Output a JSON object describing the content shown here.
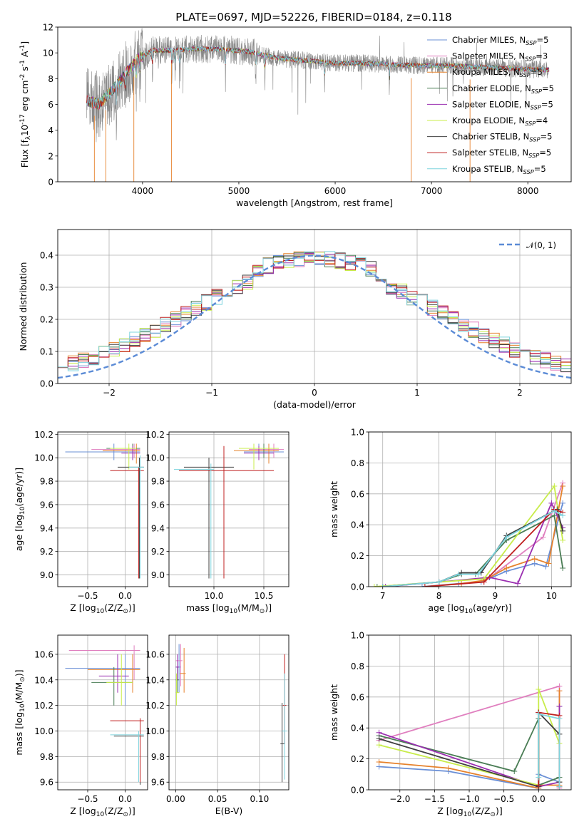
{
  "series_colors": {
    "Chabrier MILES": "#6a8fd6",
    "Salpeter MILES": "#e07fbf",
    "Kroupa MILES": "#e6822c",
    "Chabrier ELODIE": "#4a7d55",
    "Salpeter ELODIE": "#9a2eb0",
    "Kroupa ELODIE": "#c8ec4a",
    "Chabrier STELIB": "#404040",
    "Salpeter STELIB": "#c02020",
    "Kroupa STELIB": "#7ed4de"
  },
  "chart_data": [
    {
      "id": "spectrum",
      "type": "line",
      "title": "PLATE=0697, MJD=52226, FIBERID=0184, z=0.118",
      "xlabel": "wavelength [Angstrom, rest frame]",
      "ylabel": "Flux [f$_\\lambda$10$^{-17}$ erg cm$^{-2}$ s$^{-1}$ A$^{-1}$]",
      "xlim": [
        3120,
        8450
      ],
      "ylim": [
        0,
        12
      ],
      "xticks": [
        "4000",
        "5000",
        "6000",
        "7000",
        "8000"
      ],
      "yticks": [
        "0",
        "2",
        "4",
        "6",
        "8",
        "10",
        "12"
      ],
      "grid": false,
      "legend_position": "top-right",
      "data_color": "#888888",
      "legend": [
        "Chabrier MILES, N$_{SSP}$=5",
        "Salpeter MILES, N$_{SSP}$=3",
        "Kroupa MILES, N$_{SSP}$=5",
        "Chabrier ELODIE, N$_{SSP}$=5",
        "Salpeter ELODIE, N$_{SSP}$=5",
        "Kroupa ELODIE, N$_{SSP}$=4",
        "Chabrier STELIB, N$_{SSP}$=5",
        "Salpeter STELIB, N$_{SSP}$=5",
        "Kroupa STELIB, N$_{SSP}$=5"
      ],
      "continuum": {
        "x": [
          3420,
          3550,
          3700,
          3850,
          3950,
          4100,
          4300,
          4500,
          4800,
          5100,
          5400,
          5700,
          6000,
          6300,
          6600,
          6900,
          7200,
          7500,
          7800,
          8100,
          8200
        ],
        "y": [
          6.3,
          6.0,
          7.2,
          8.6,
          9.5,
          10.2,
          10.2,
          10.3,
          10.3,
          10.1,
          9.6,
          9.4,
          9.2,
          9.2,
          9.1,
          9.0,
          9.0,
          8.9,
          8.8,
          8.7,
          8.7
        ]
      }
    },
    {
      "id": "residuals",
      "type": "bar",
      "xlabel": "(data-model)/error",
      "ylabel": "Normed distribution",
      "xlim": [
        -2.5,
        2.5
      ],
      "ylim": [
        0,
        0.48
      ],
      "xticks": [
        "-2",
        "-1",
        "0",
        "1",
        "2"
      ],
      "yticks": [
        "0.0",
        "0.1",
        "0.2",
        "0.3",
        "0.4"
      ],
      "grid": true,
      "legend_position": "top-right",
      "legend": [
        "$\\mathcal{N}(0, 1)$"
      ],
      "bins": {
        "start": -2.5,
        "width": 0.1,
        "count": 50
      }
    },
    {
      "id": "age-vs-Z",
      "type": "scatter",
      "xlabel": "Z [log$_{10}$(Z/Z$_\\odot$)]",
      "ylabel": "age  [log$_{10}$(age/yr)]",
      "xlim": [
        -0.9,
        0.3
      ],
      "ylim": [
        8.9,
        10.22
      ],
      "xticks": [
        "-0.5",
        "0.0"
      ],
      "yticks": [
        "9.0",
        "9.2",
        "9.4",
        "9.6",
        "9.8",
        "10.0",
        "10.2"
      ],
      "grid": true
    },
    {
      "id": "age-vs-mass",
      "type": "scatter",
      "xlabel": "mass [log$_{10}$(M/M$_\\odot$)]",
      "xlim": [
        9.55,
        10.75
      ],
      "ylim": [
        8.9,
        10.22
      ],
      "xticks": [
        "10.0",
        "10.5"
      ],
      "yticks": [
        "9.0",
        "9.2",
        "9.4",
        "9.6",
        "9.8",
        "10.0",
        "10.2"
      ],
      "grid": true
    },
    {
      "id": "weight-vs-age",
      "type": "line",
      "xlabel": "age  [log$_{10}$(age/yr)]",
      "ylabel": "mass weight",
      "xlim": [
        6.75,
        10.35
      ],
      "ylim": [
        0,
        1
      ],
      "xticks": [
        "7",
        "8",
        "9",
        "10"
      ],
      "yticks": [
        "0.0",
        "0.2",
        "0.4",
        "0.6",
        "0.8",
        "1.0"
      ],
      "grid": true,
      "series": [
        {
          "name": "Chabrier MILES",
          "x": [
            7.7,
            8.35,
            8.75,
            9.2,
            9.7,
            9.9,
            10.2
          ],
          "y": [
            0.0,
            0.02,
            0.03,
            0.1,
            0.15,
            0.13,
            0.54
          ]
        },
        {
          "name": "Salpeter MILES",
          "x": [
            8.8,
            9.85,
            10.2
          ],
          "y": [
            0.03,
            0.32,
            0.67
          ]
        },
        {
          "name": "Kroupa MILES",
          "x": [
            7.75,
            8.4,
            8.8,
            9.2,
            9.7,
            9.95,
            10.2
          ],
          "y": [
            0.0,
            0.02,
            0.04,
            0.12,
            0.18,
            0.15,
            0.65
          ]
        },
        {
          "name": "Chabrier ELODIE",
          "x": [
            6.9,
            8.0,
            8.4,
            8.65,
            9.2,
            10.05,
            10.2
          ],
          "y": [
            0.0,
            0.03,
            0.08,
            0.08,
            0.3,
            0.46,
            0.12
          ]
        },
        {
          "name": "Salpeter ELODIE",
          "x": [
            7.05,
            8.0,
            8.9,
            9.4,
            10.0,
            10.2
          ],
          "y": [
            0.0,
            0.03,
            0.06,
            0.02,
            0.54,
            0.38
          ]
        },
        {
          "name": "Kroupa ELODIE",
          "x": [
            6.85,
            8.8,
            10.05,
            10.2
          ],
          "y": [
            0.0,
            0.05,
            0.65,
            0.3
          ]
        },
        {
          "name": "Chabrier STELIB",
          "x": [
            7.0,
            8.0,
            8.4,
            8.75,
            9.2,
            10.1,
            10.2
          ],
          "y": [
            0.0,
            0.03,
            0.09,
            0.09,
            0.33,
            0.5,
            0.36
          ]
        },
        {
          "name": "Salpeter STELIB",
          "x": [
            7.75,
            8.8,
            10.05,
            10.2
          ],
          "y": [
            0.0,
            0.03,
            0.5,
            0.48
          ]
        },
        {
          "name": "Kroupa STELIB",
          "x": [
            7.0,
            8.0,
            8.35,
            8.7,
            9.2,
            10.05,
            10.2
          ],
          "y": [
            0.0,
            0.03,
            0.08,
            0.08,
            0.32,
            0.49,
            0.46
          ]
        }
      ]
    },
    {
      "id": "mass-vs-Z",
      "type": "scatter",
      "xlabel": "Z [log$_{10}$(Z/Z$_\\odot$)]",
      "ylabel": "mass [log$_{10}$(M/M$_\\odot$)]",
      "xlim": [
        -0.9,
        0.3
      ],
      "ylim": [
        9.54,
        10.75
      ],
      "xticks": [
        "-0.5",
        "0.0"
      ],
      "yticks": [
        "9.6",
        "9.8",
        "10.0",
        "10.2",
        "10.4",
        "10.6"
      ],
      "grid": true
    },
    {
      "id": "mass-vs-ebv",
      "type": "scatter",
      "xlabel": "E(B-V)",
      "xlim": [
        -0.008,
        0.135
      ],
      "ylim": [
        9.54,
        10.75
      ],
      "xticks": [
        "0.00",
        "0.05",
        "0.10"
      ],
      "yticks": [
        "9.6",
        "9.8",
        "10.0",
        "10.2",
        "10.4",
        "10.6"
      ],
      "grid": true
    },
    {
      "id": "weight-vs-Z",
      "type": "line",
      "xlabel": "Z [log$_{10}$(Z/Z$_\\odot$)]",
      "ylabel": "mass weight",
      "xlim": [
        -2.45,
        0.47
      ],
      "ylim": [
        0,
        1
      ],
      "xticks": [
        "-2.0",
        "-1.5",
        "-1.0",
        "-0.5",
        "0.0"
      ],
      "yticks": [
        "0.0",
        "0.2",
        "0.4",
        "0.6",
        "0.8",
        "1.0"
      ],
      "grid": true,
      "series": [
        {
          "name": "Chabrier MILES",
          "x": [
            -2.3,
            -1.3,
            0.0,
            0.0,
            0.3,
            0.3
          ],
          "y": [
            0.15,
            0.12,
            0.01,
            0.1,
            0.05,
            0.54
          ]
        },
        {
          "name": "Salpeter MILES",
          "x": [
            -2.3,
            0.3,
            0.3
          ],
          "y": [
            0.32,
            0.67,
            0.01
          ]
        },
        {
          "name": "Kroupa MILES",
          "x": [
            -2.3,
            -1.3,
            0.0,
            0.0,
            0.3,
            0.3
          ],
          "y": [
            0.18,
            0.14,
            0.01,
            0.03,
            0.03,
            0.64
          ]
        },
        {
          "name": "Chabrier ELODIE",
          "x": [
            -2.3,
            -0.35,
            0.0,
            0.0,
            0.3,
            0.3
          ],
          "y": [
            0.35,
            0.12,
            0.46,
            0.03,
            0.08,
            0.02
          ]
        },
        {
          "name": "Salpeter ELODIE",
          "x": [
            -2.3,
            0.0,
            0.3,
            0.3
          ],
          "y": [
            0.37,
            0.02,
            0.05,
            0.54
          ]
        },
        {
          "name": "Kroupa ELODIE",
          "x": [
            -2.3,
            0.0,
            0.0,
            0.3,
            0.3
          ],
          "y": [
            0.29,
            0.03,
            0.65,
            0.3,
            0.05
          ]
        },
        {
          "name": "Chabrier STELIB",
          "x": [
            -2.3,
            0.0,
            0.0,
            0.3,
            0.3
          ],
          "y": [
            0.33,
            0.02,
            0.5,
            0.36,
            0.05
          ]
        },
        {
          "name": "Salpeter STELIB",
          "x": [
            0.0,
            0.0,
            0.3,
            0.3
          ],
          "y": [
            0.03,
            0.5,
            0.48,
            0.02
          ]
        },
        {
          "name": "Kroupa STELIB",
          "x": [
            0.0,
            0.0,
            0.3,
            0.3
          ],
          "y": [
            0.08,
            0.49,
            0.46,
            0.02
          ]
        }
      ]
    }
  ]
}
